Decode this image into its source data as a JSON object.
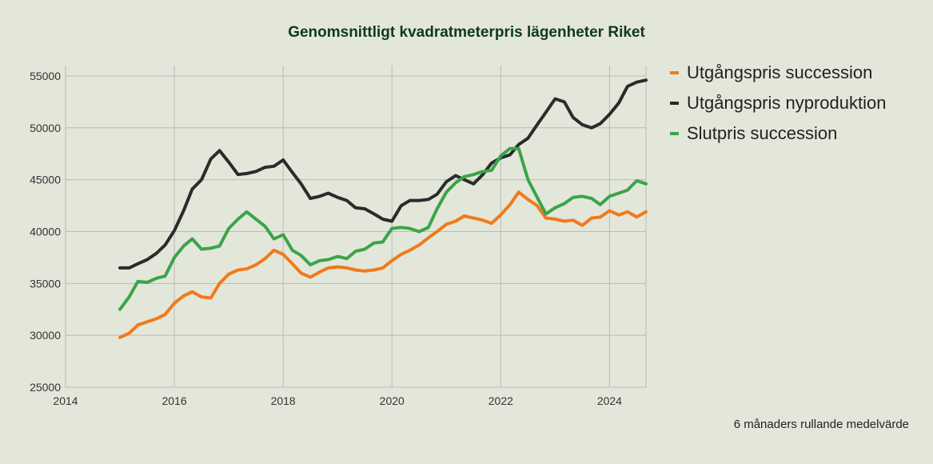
{
  "chart_data": {
    "type": "line",
    "title": "Genomsnittligt kvadratmeterpris lägenheter Riket",
    "note": "6 månaders rullande medelvärde",
    "xlim": [
      2014,
      2024.67
    ],
    "ylim": [
      25000,
      56000
    ],
    "xticks": [
      "2014",
      "2016",
      "2018",
      "2020",
      "2022",
      "2024"
    ],
    "yticks": [
      "25000",
      "30000",
      "35000",
      "40000",
      "45000",
      "50000",
      "55000"
    ],
    "grid": true,
    "legend_position": "right",
    "series": [
      {
        "name": "Utgångspris succession",
        "color": "#f07a1c",
        "x": [
          2015.0,
          2015.17,
          2015.33,
          2015.5,
          2015.67,
          2015.83,
          2016.0,
          2016.17,
          2016.33,
          2016.5,
          2016.67,
          2016.83,
          2017.0,
          2017.17,
          2017.33,
          2017.5,
          2017.67,
          2017.83,
          2018.0,
          2018.17,
          2018.33,
          2018.5,
          2018.67,
          2018.83,
          2019.0,
          2019.17,
          2019.33,
          2019.5,
          2019.67,
          2019.83,
          2020.0,
          2020.17,
          2020.33,
          2020.5,
          2020.67,
          2020.83,
          2021.0,
          2021.17,
          2021.33,
          2021.5,
          2021.67,
          2021.83,
          2022.0,
          2022.17,
          2022.33,
          2022.5,
          2022.67,
          2022.83,
          2023.0,
          2023.17,
          2023.33,
          2023.5,
          2023.67,
          2023.83,
          2024.0,
          2024.17,
          2024.33,
          2024.5,
          2024.67
        ],
        "values": [
          29800,
          30200,
          31000,
          31300,
          31600,
          32000,
          33100,
          33800,
          34200,
          33700,
          33600,
          35000,
          35900,
          36300,
          36400,
          36800,
          37400,
          38200,
          37800,
          36900,
          36000,
          35600,
          36100,
          36500,
          36600,
          36500,
          36300,
          36200,
          36300,
          36500,
          37200,
          37800,
          38200,
          38700,
          39400,
          40000,
          40700,
          41000,
          41500,
          41300,
          41100,
          40800,
          41600,
          42600,
          43800,
          43100,
          42500,
          41300,
          41200,
          41000,
          41100,
          40600,
          41300,
          41400,
          42000,
          41600,
          41900,
          41400,
          41900
        ]
      },
      {
        "name": "Utgångspris nyproduktion",
        "color": "#2b2b2b",
        "x": [
          2015.0,
          2015.17,
          2015.33,
          2015.5,
          2015.67,
          2015.83,
          2016.0,
          2016.17,
          2016.33,
          2016.5,
          2016.67,
          2016.83,
          2017.0,
          2017.17,
          2017.33,
          2017.5,
          2017.67,
          2017.83,
          2018.0,
          2018.17,
          2018.33,
          2018.5,
          2018.67,
          2018.83,
          2019.0,
          2019.17,
          2019.33,
          2019.5,
          2019.67,
          2019.83,
          2020.0,
          2020.17,
          2020.33,
          2020.5,
          2020.67,
          2020.83,
          2021.0,
          2021.17,
          2021.33,
          2021.5,
          2021.67,
          2021.83,
          2022.0,
          2022.17,
          2022.33,
          2022.5,
          2022.67,
          2022.83,
          2023.0,
          2023.17,
          2023.33,
          2023.5,
          2023.67,
          2023.83,
          2024.0,
          2024.17,
          2024.33,
          2024.5,
          2024.67
        ],
        "values": [
          36500,
          36500,
          36900,
          37300,
          37900,
          38700,
          40100,
          42000,
          44100,
          45000,
          47000,
          47800,
          46700,
          45500,
          45600,
          45800,
          46200,
          46300,
          46900,
          45700,
          44600,
          43200,
          43400,
          43700,
          43300,
          43000,
          42300,
          42200,
          41700,
          41200,
          41000,
          42500,
          43000,
          43000,
          43100,
          43600,
          44800,
          45400,
          45000,
          44600,
          45500,
          46600,
          47100,
          47400,
          48400,
          49000,
          50300,
          51500,
          52800,
          52500,
          51000,
          50300,
          50000,
          50400,
          51300,
          52400,
          54000,
          54400,
          54600
        ]
      },
      {
        "name": "Slutpris succession",
        "color": "#3ba44a",
        "x": [
          2015.0,
          2015.17,
          2015.33,
          2015.5,
          2015.67,
          2015.83,
          2016.0,
          2016.17,
          2016.33,
          2016.5,
          2016.67,
          2016.83,
          2017.0,
          2017.17,
          2017.33,
          2017.5,
          2017.67,
          2017.83,
          2018.0,
          2018.17,
          2018.33,
          2018.5,
          2018.67,
          2018.83,
          2019.0,
          2019.17,
          2019.33,
          2019.5,
          2019.67,
          2019.83,
          2020.0,
          2020.17,
          2020.33,
          2020.5,
          2020.67,
          2020.83,
          2021.0,
          2021.17,
          2021.33,
          2021.5,
          2021.67,
          2021.83,
          2022.0,
          2022.17,
          2022.33,
          2022.5,
          2022.67,
          2022.83,
          2023.0,
          2023.17,
          2023.33,
          2023.5,
          2023.67,
          2023.83,
          2024.0,
          2024.17,
          2024.33,
          2024.5,
          2024.67
        ],
        "values": [
          32500,
          33700,
          35200,
          35100,
          35500,
          35700,
          37500,
          38600,
          39300,
          38300,
          38400,
          38600,
          40300,
          41200,
          41900,
          41200,
          40500,
          39300,
          39700,
          38200,
          37700,
          36800,
          37200,
          37300,
          37600,
          37400,
          38100,
          38300,
          38900,
          39000,
          40300,
          40400,
          40300,
          40000,
          40400,
          42200,
          43800,
          44700,
          45300,
          45500,
          45800,
          45900,
          47300,
          48000,
          48000,
          45000,
          43300,
          41700,
          42300,
          42700,
          43300,
          43400,
          43200,
          42600,
          43400,
          43700,
          44000,
          44900,
          44600
        ]
      }
    ]
  }
}
